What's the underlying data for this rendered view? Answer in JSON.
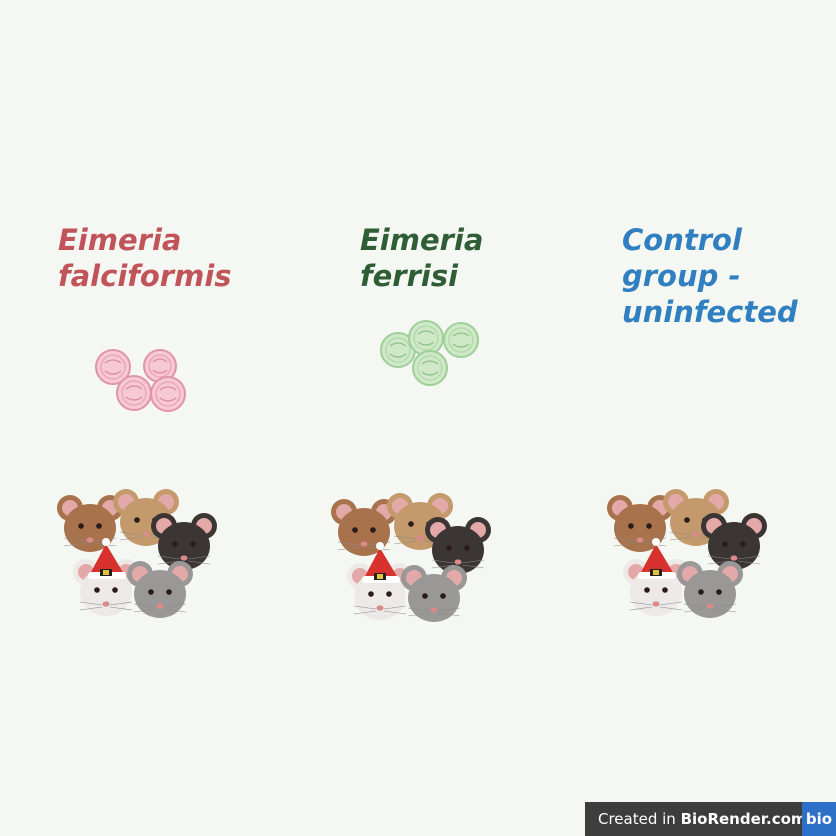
{
  "groups": [
    {
      "line1": "Eimeria",
      "line2": "falciformis",
      "color": "#c0545a"
    },
    {
      "line1": "Eimeria",
      "line2": "ferrisi",
      "color": "#2f5e36"
    },
    {
      "line1": "Control",
      "line2": "group -",
      "line3": "uninfected",
      "color": "#2f7fc1"
    }
  ],
  "oocyst_colors": {
    "falciformis": "#f2b6c6",
    "ferrisi": "#c6e3bf"
  },
  "mouse_colors": {
    "brown": "#a8724c",
    "tan": "#c49a6c",
    "black": "#3b3533",
    "white": "#ede9e6",
    "gray": "#9a9896"
  },
  "badge": {
    "prefix": "Created in ",
    "brand": "BioRender.com",
    "logo": "bio"
  }
}
